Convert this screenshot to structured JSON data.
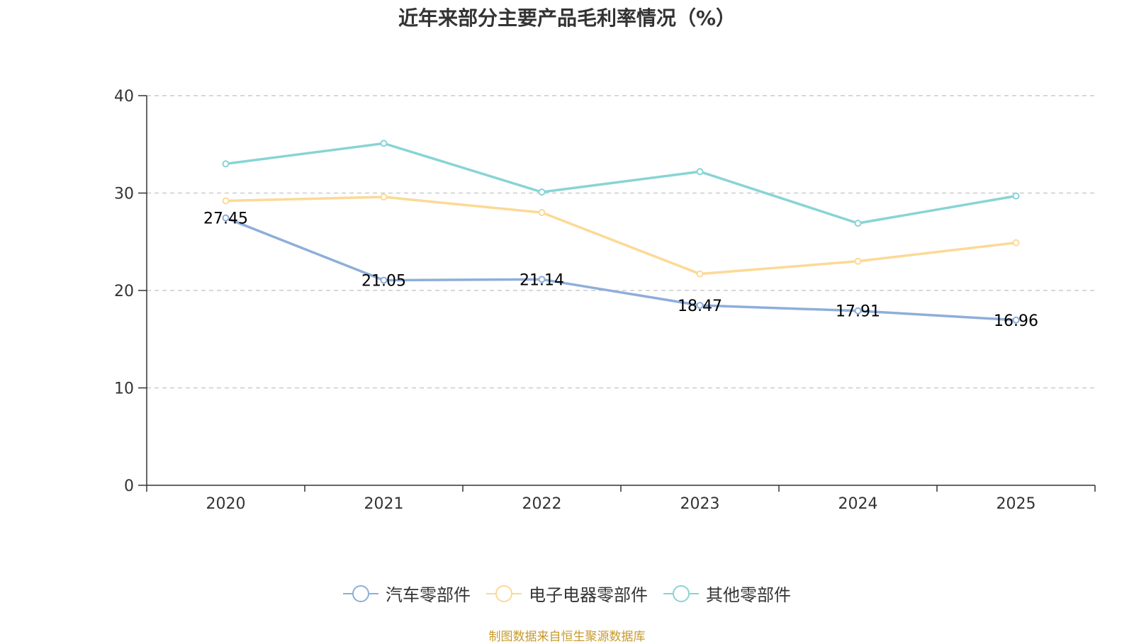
{
  "chart_data": {
    "type": "line",
    "title": "近年来部分主要产品毛利率情况（%）",
    "categories": [
      "2020",
      "2021",
      "2022",
      "2023",
      "2024",
      "2025"
    ],
    "ylim": [
      0,
      40
    ],
    "yticks": [
      0,
      10,
      20,
      30,
      40
    ],
    "grid": true,
    "legend_position": "bottom",
    "series": [
      {
        "name": "汽车零部件",
        "color": "#8eaedb",
        "values": [
          27.45,
          21.05,
          21.14,
          18.47,
          17.91,
          16.96
        ],
        "labels": [
          "27.45",
          "21.05",
          "21.14",
          "18.47",
          "17.91",
          "16.96"
        ]
      },
      {
        "name": "电子电器零部件",
        "color": "#fcd995",
        "values": [
          29.2,
          29.6,
          28.0,
          21.7,
          23.0,
          24.9
        ],
        "labels": []
      },
      {
        "name": "其他零部件",
        "color": "#88d4d5",
        "values": [
          33.0,
          35.1,
          30.1,
          32.2,
          26.9,
          29.7
        ],
        "labels": []
      }
    ]
  },
  "source_text": "制图数据来自恒生聚源数据库"
}
